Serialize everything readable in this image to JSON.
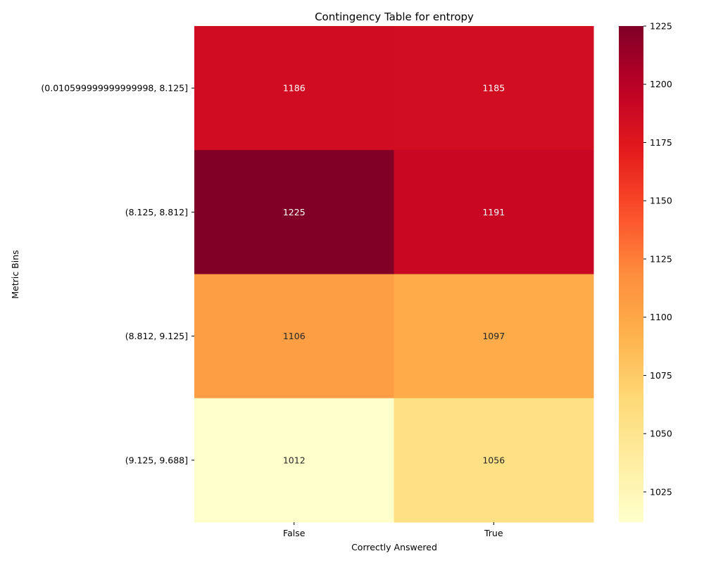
{
  "chart_data": {
    "type": "heatmap",
    "title": "Contingency Table for entropy",
    "xlabel": "Correctly Answered",
    "ylabel": "Metric Bins",
    "columns": [
      "False",
      "True"
    ],
    "rows": [
      "(0.010599999999999998, 8.125]",
      "(8.125, 8.812]",
      "(8.812, 9.125]",
      "(9.125, 9.688]"
    ],
    "values": [
      [
        1186,
        1185
      ],
      [
        1225,
        1191
      ],
      [
        1106,
        1097
      ],
      [
        1012,
        1056
      ]
    ],
    "colormap": "YlOrRd",
    "color_range": [
      1012,
      1225
    ],
    "colorbar_ticks": [
      1025,
      1050,
      1075,
      1100,
      1125,
      1150,
      1175,
      1200,
      1225
    ],
    "annotate": true,
    "grid": false
  }
}
